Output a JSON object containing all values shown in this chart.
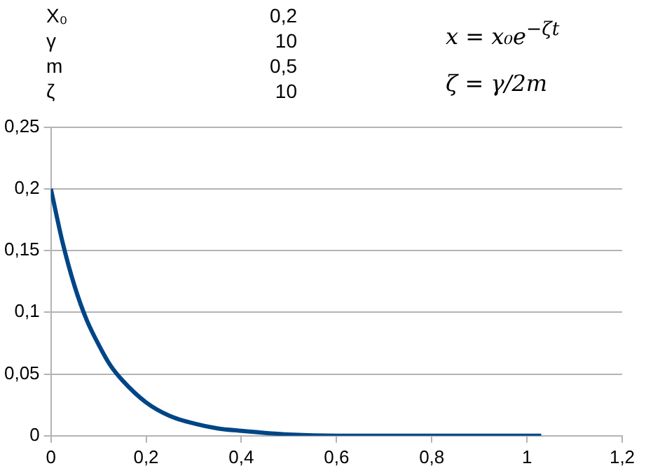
{
  "chart_data": {
    "type": "line",
    "annotations": [
      "X₀",
      "0,2",
      "γ",
      "10",
      "m",
      "0,5",
      "ζ",
      "10",
      "x = x₀e$^{−ζt}$",
      "ζ = γ/2m"
    ],
    "x": [
      0,
      0.025,
      0.05,
      0.075,
      0.1,
      0.125,
      0.15,
      0.2,
      0.25,
      0.3,
      0.35,
      0.4,
      0.5,
      0.6,
      0.7,
      0.8,
      0.9,
      1.03
    ],
    "series": [
      {
        "color": "#004586",
        "values": [
          0.2,
          0.156,
          0.121,
          0.094,
          0.074,
          0.057,
          0.045,
          0.027,
          0.016,
          0.01,
          0.006,
          0.004,
          0.001,
          0,
          0,
          0,
          0,
          0
        ]
      }
    ],
    "xlim": [
      0,
      1.2
    ],
    "xticks": [
      0,
      {
        "value": 0.2,
        "label": "0,2"
      },
      {
        "value": 0.4,
        "label": "0,4"
      },
      {
        "value": 0.6,
        "label": "0,6"
      },
      {
        "value": 0.8,
        "label": "0,8"
      },
      1,
      {
        "value": 1.2,
        "label": "1,2"
      }
    ],
    "ylim": [
      0,
      0.25
    ],
    "yticks": [
      0,
      {
        "value": 0.05,
        "label": "0,05"
      },
      {
        "value": 0.1,
        "label": "0,1"
      },
      {
        "value": 0.15,
        "label": "0,15"
      },
      {
        "value": 0.2,
        "label": "0,2"
      },
      {
        "value": 0.25,
        "label": "0,25"
      }
    ],
    "grid": "y",
    "legend": false,
    "marker": "none",
    "line_style": "solid"
  }
}
